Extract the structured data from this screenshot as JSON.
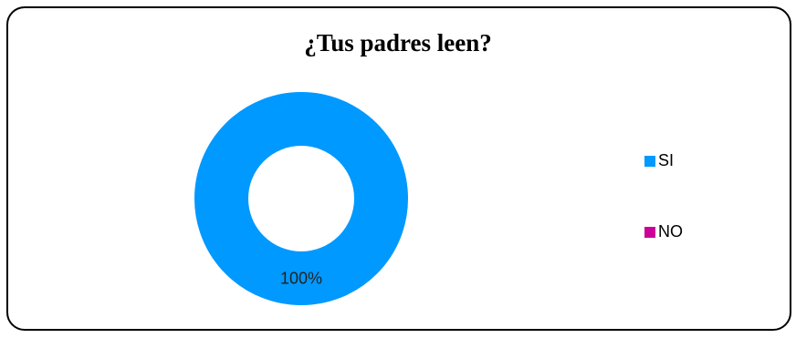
{
  "chart_data": {
    "type": "pie",
    "subtype": "doughnut",
    "title": "¿Tus padres leen?",
    "categories": [
      "SI",
      "NO"
    ],
    "values": [
      100,
      0
    ],
    "data_labels": [
      "100%",
      ""
    ],
    "colors": [
      "#0099FF",
      "#CC0099"
    ],
    "legend_position": "right"
  }
}
